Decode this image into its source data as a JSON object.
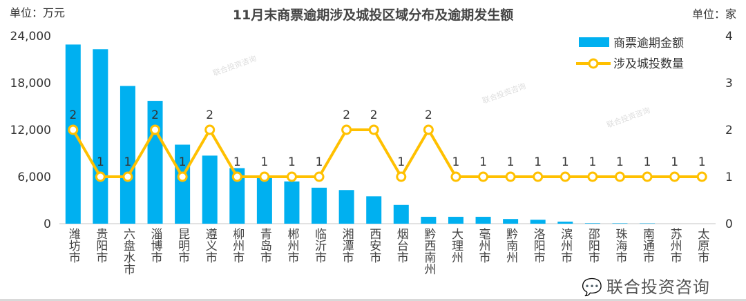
{
  "chart_data": {
    "type": "bar+line",
    "title": "11月末商票逾期涉及城投区域分布及逾期发生额",
    "ylabel_left": "单位：万元",
    "ylabel_right": "单位：家",
    "ylim_left": [
      0,
      24000
    ],
    "yticks_left": [
      "0",
      "6,000",
      "12,000",
      "18,000",
      "24,000"
    ],
    "ylim_right": [
      0,
      4
    ],
    "yticks_right": [
      "0",
      "1",
      "2",
      "3",
      "4"
    ],
    "grid": false,
    "legend_position": "top-right",
    "categories": [
      "潍坊市",
      "贵阳市",
      "六盘水市",
      "淄博市",
      "昆明市",
      "遵义市",
      "柳州市",
      "青岛市",
      "郴州市",
      "临沂市",
      "湘潭市",
      "西安市",
      "烟台市",
      "黔西南州",
      "大理州",
      "亳州市",
      "黔南州",
      "洛阳市",
      "滨州市",
      "邵阳市",
      "珠海市",
      "南通市",
      "苏州市",
      "太原市"
    ],
    "series": [
      {
        "name": "商票逾期金额",
        "type": "bar",
        "axis": "left",
        "color": "#00b0f0",
        "values": [
          22900,
          22300,
          17600,
          15700,
          10100,
          8700,
          7100,
          5900,
          5400,
          4600,
          4300,
          3500,
          2400,
          880,
          880,
          880,
          600,
          500,
          260,
          60,
          50,
          40,
          0,
          0
        ]
      },
      {
        "name": "涉及城投数量",
        "type": "line",
        "axis": "right",
        "color": "#ffc000",
        "values": [
          2,
          1,
          1,
          2,
          1,
          2,
          1,
          1,
          1,
          1,
          2,
          2,
          1,
          2,
          1,
          1,
          1,
          1,
          1,
          1,
          1,
          1,
          1,
          1
        ]
      }
    ]
  },
  "watermark": "联合投资咨询",
  "logo_text": "联合投资咨询"
}
